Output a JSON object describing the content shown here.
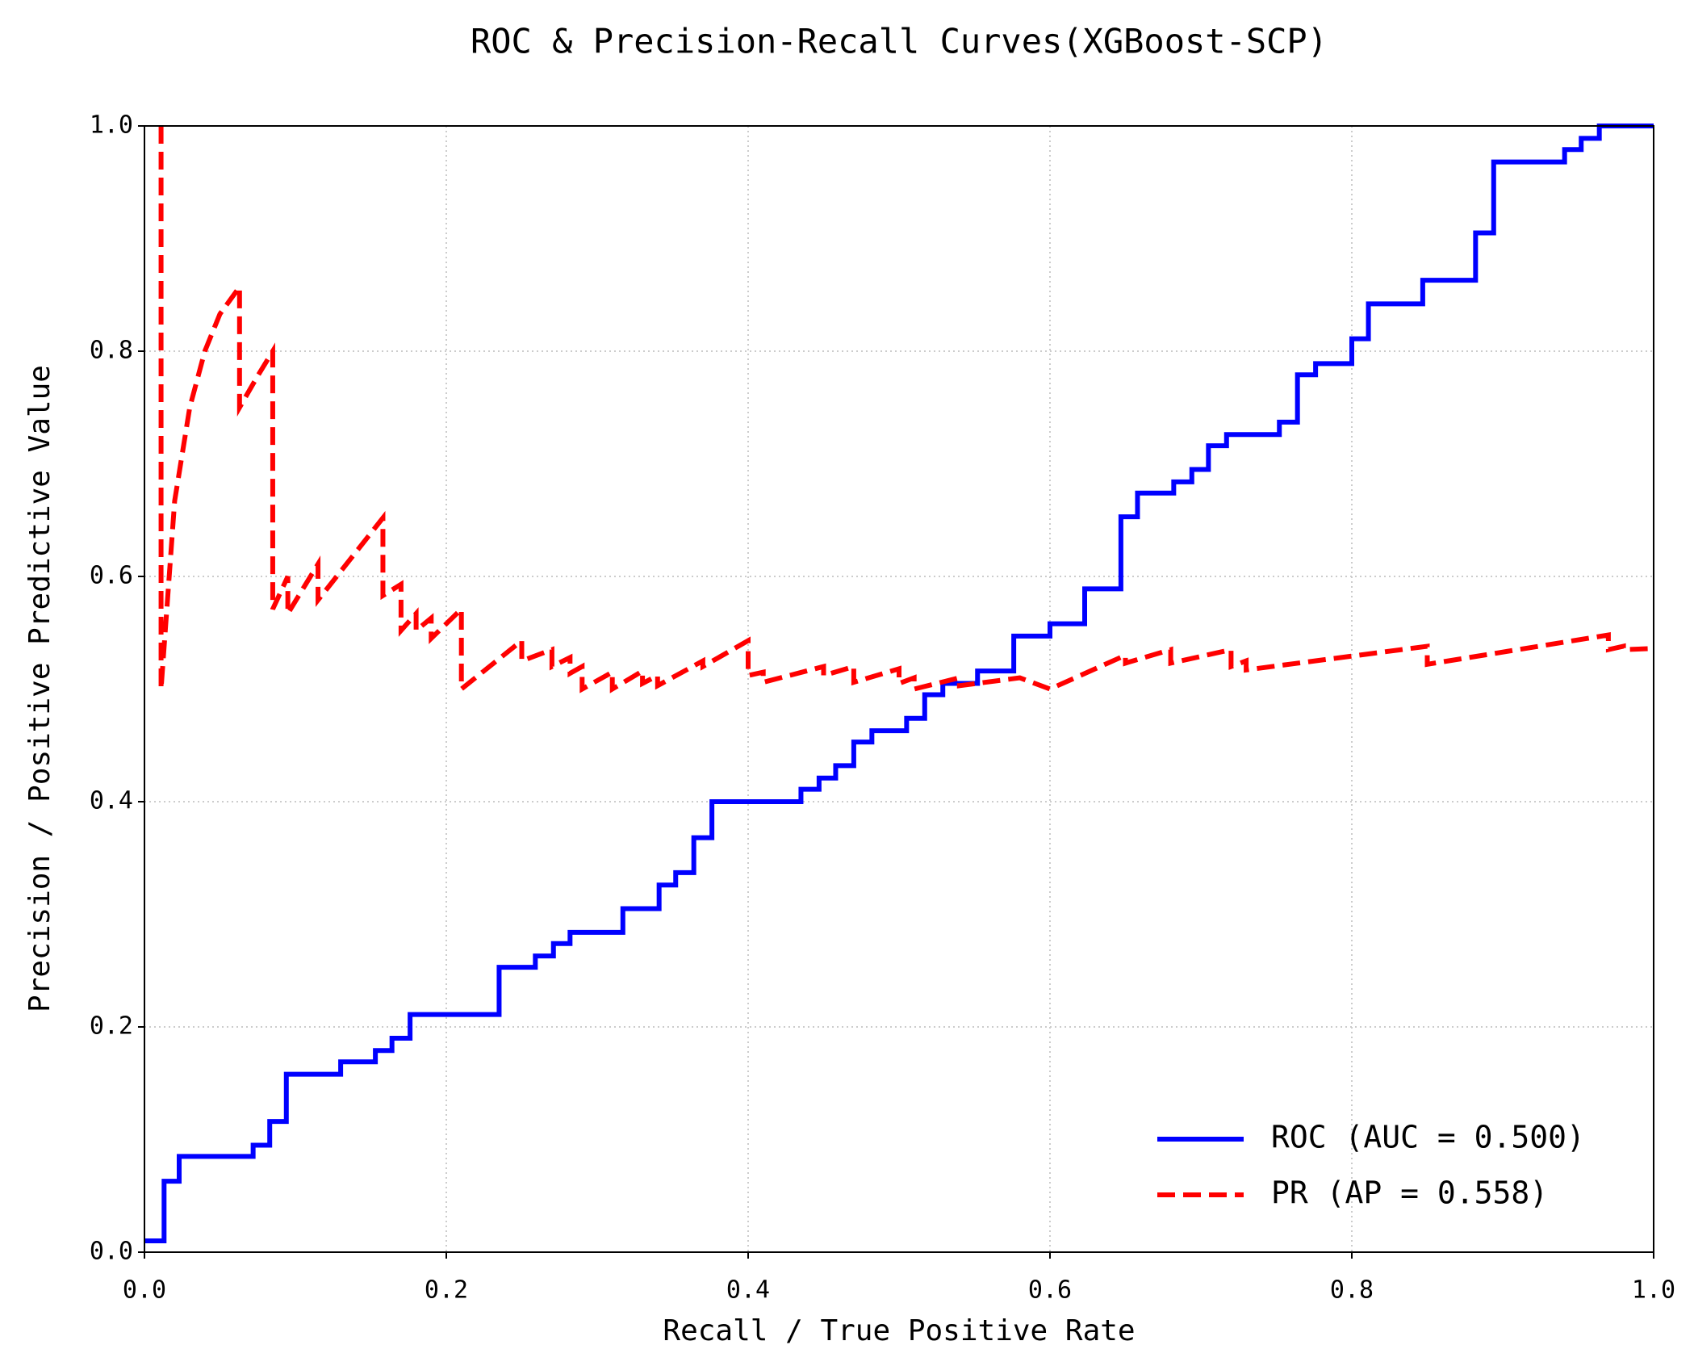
{
  "chart_data": {
    "type": "line",
    "title": "ROC & Precision-Recall Curves(XGBoost-SCP)",
    "x_label": "Recall / True Positive Rate",
    "y_label": "Precision / Positive Predictive Value",
    "xlim": [
      0,
      1
    ],
    "ylim": [
      0,
      1
    ],
    "xticks": [
      {
        "value": 0,
        "label": "0.0"
      },
      0.2,
      0.4,
      0.6,
      0.8,
      {
        "value": 1,
        "label": "1.0"
      }
    ],
    "yticks": [
      {
        "value": 0,
        "label": "0.0"
      },
      0.2,
      0.4,
      0.6,
      0.8,
      {
        "value": 1,
        "label": "1.0"
      }
    ],
    "grid": true,
    "legend": "lower right",
    "series": [
      {
        "name": "ROC (AUC = 0.500)",
        "color": "#0000ff",
        "linestyle": "solid",
        "x": [
          0,
          0.013,
          0.013,
          0.023,
          0.023,
          0.072,
          0.072,
          0.083,
          0.083,
          0.094,
          0.094,
          0.13,
          0.13,
          0.153,
          0.153,
          0.164,
          0.164,
          0.176,
          0.176,
          0.235,
          0.235,
          0.259,
          0.259,
          0.271,
          0.271,
          0.282,
          0.282,
          0.317,
          0.317,
          0.341,
          0.341,
          0.352,
          0.352,
          0.364,
          0.364,
          0.376,
          0.376,
          0.435,
          0.435,
          0.447,
          0.447,
          0.458,
          0.458,
          0.47,
          0.47,
          0.482,
          0.482,
          0.505,
          0.505,
          0.517,
          0.517,
          0.529,
          0.529,
          0.552,
          0.552,
          0.576,
          0.576,
          0.6,
          0.6,
          0.623,
          0.623,
          0.647,
          0.647,
          0.658,
          0.658,
          0.682,
          0.682,
          0.694,
          0.694,
          0.705,
          0.705,
          0.717,
          0.717,
          0.752,
          0.752,
          0.764,
          0.764,
          0.776,
          0.776,
          0.8,
          0.8,
          0.811,
          0.811,
          0.847,
          0.847,
          0.882,
          0.882,
          0.894,
          0.894,
          0.941,
          0.941,
          0.952,
          0.952,
          0.964,
          0.964,
          1
        ],
        "values": [
          0.01,
          0.01,
          0.063,
          0.063,
          0.085,
          0.085,
          0.095,
          0.095,
          0.116,
          0.116,
          0.158,
          0.158,
          0.169,
          0.169,
          0.179,
          0.179,
          0.19,
          0.19,
          0.211,
          0.211,
          0.253,
          0.253,
          0.263,
          0.263,
          0.274,
          0.274,
          0.284,
          0.284,
          0.305,
          0.305,
          0.326,
          0.326,
          0.337,
          0.337,
          0.368,
          0.368,
          0.4,
          0.4,
          0.411,
          0.411,
          0.421,
          0.421,
          0.432,
          0.432,
          0.453,
          0.453,
          0.463,
          0.463,
          0.474,
          0.474,
          0.495,
          0.495,
          0.505,
          0.505,
          0.516,
          0.516,
          0.547,
          0.547,
          0.558,
          0.558,
          0.589,
          0.589,
          0.653,
          0.653,
          0.674,
          0.674,
          0.684,
          0.684,
          0.695,
          0.695,
          0.716,
          0.716,
          0.726,
          0.726,
          0.737,
          0.737,
          0.779,
          0.779,
          0.789,
          0.789,
          0.811,
          0.811,
          0.842,
          0.842,
          0.863,
          0.863,
          0.905,
          0.905,
          0.968,
          0.968,
          0.979,
          0.979,
          0.989,
          0.989,
          1,
          1
        ]
      },
      {
        "name": "PR (AP = 0.558)",
        "color": "#ff0000",
        "linestyle": "dashed",
        "x": [
          0.011,
          0.011,
          0.02,
          0.03,
          0.04,
          0.05,
          0.063,
          0.063,
          0.075,
          0.085,
          0.085,
          0.095,
          0.095,
          0.115,
          0.115,
          0.158,
          0.158,
          0.17,
          0.17,
          0.18,
          0.18,
          0.19,
          0.19,
          0.21,
          0.21,
          0.25,
          0.25,
          0.27,
          0.27,
          0.282,
          0.282,
          0.29,
          0.29,
          0.31,
          0.31,
          0.33,
          0.33,
          0.34,
          0.34,
          0.37,
          0.37,
          0.4,
          0.4,
          0.41,
          0.41,
          0.45,
          0.45,
          0.47,
          0.47,
          0.5,
          0.5,
          0.51,
          0.51,
          0.54,
          0.54,
          0.58,
          0.6,
          0.65,
          0.65,
          0.68,
          0.68,
          0.72,
          0.72,
          0.73,
          0.73,
          0.85,
          0.85,
          0.97,
          0.97,
          0.98,
          0.98,
          1
        ],
        "values": [
          1,
          0.5,
          0.667,
          0.75,
          0.8,
          0.833,
          0.857,
          0.75,
          0.778,
          0.8,
          0.571,
          0.6,
          0.567,
          0.611,
          0.579,
          0.652,
          0.583,
          0.593,
          0.552,
          0.567,
          0.552,
          0.563,
          0.545,
          0.571,
          0.5,
          0.543,
          0.525,
          0.535,
          0.52,
          0.528,
          0.514,
          0.52,
          0.5,
          0.515,
          0.5,
          0.516,
          0.505,
          0.512,
          0.503,
          0.525,
          0.52,
          0.543,
          0.512,
          0.515,
          0.506,
          0.52,
          0.512,
          0.52,
          0.506,
          0.518,
          0.505,
          0.51,
          0.5,
          0.51,
          0.503,
          0.51,
          0.5,
          0.53,
          0.523,
          0.535,
          0.523,
          0.535,
          0.52,
          0.525,
          0.517,
          0.538,
          0.522,
          0.548,
          0.535,
          0.538,
          0.535,
          0.536
        ]
      }
    ]
  }
}
